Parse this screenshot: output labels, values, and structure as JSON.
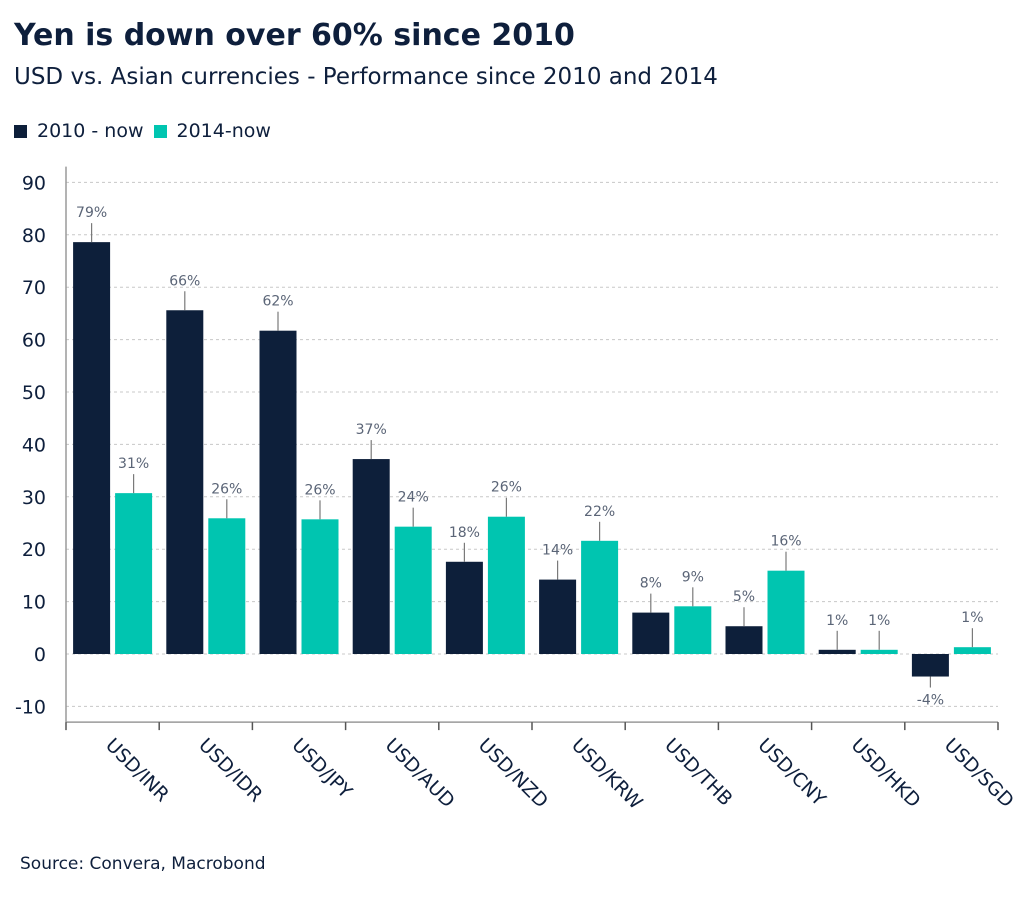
{
  "header": {
    "title": "Yen is down over 60% since 2010",
    "subtitle": "USD vs. Asian currencies - Performance since 2010 and 2014"
  },
  "source": "Source: Convera, Macrobond",
  "colors": {
    "series_2010": "#0d1f3a",
    "series_2014": "#00c5b0",
    "grid": "#c8c8c8",
    "axis_text": "#0e1f3c",
    "data_label": "#5b6577"
  },
  "chart_data": {
    "type": "bar",
    "title": "Yen is down over 60% since 2010",
    "subtitle": "USD vs. Asian currencies - Performance since 2010 and 2014",
    "categories": [
      "USD/INR",
      "USD/IDR",
      "USD/JPY",
      "USD/AUD",
      "USD/NZD",
      "USD/KRW",
      "USD/THB",
      "USD/CNY",
      "USD/HKD",
      "USD/SGD"
    ],
    "series": [
      {
        "name": "2010 - now",
        "values": [
          78.6,
          65.6,
          61.7,
          37.2,
          17.6,
          14.2,
          7.9,
          5.3,
          0.8,
          -4.3
        ],
        "labels": [
          "79%",
          "66%",
          "62%",
          "37%",
          "18%",
          "14%",
          "8%",
          "5%",
          "1%",
          "-4%"
        ]
      },
      {
        "name": "2014-now",
        "values": [
          30.7,
          25.9,
          25.7,
          24.3,
          26.2,
          21.6,
          9.1,
          15.9,
          0.8,
          1.3
        ],
        "labels": [
          "31%",
          "26%",
          "26%",
          "24%",
          "26%",
          "22%",
          "9%",
          "16%",
          "1%",
          "1%"
        ]
      }
    ],
    "yticks": [
      90,
      80,
      70,
      60,
      50,
      40,
      30,
      20,
      10,
      0,
      -10
    ],
    "ylim": [
      -13,
      93
    ],
    "xlabel": "",
    "ylabel": "",
    "grid": true,
    "legend": "top-left"
  }
}
